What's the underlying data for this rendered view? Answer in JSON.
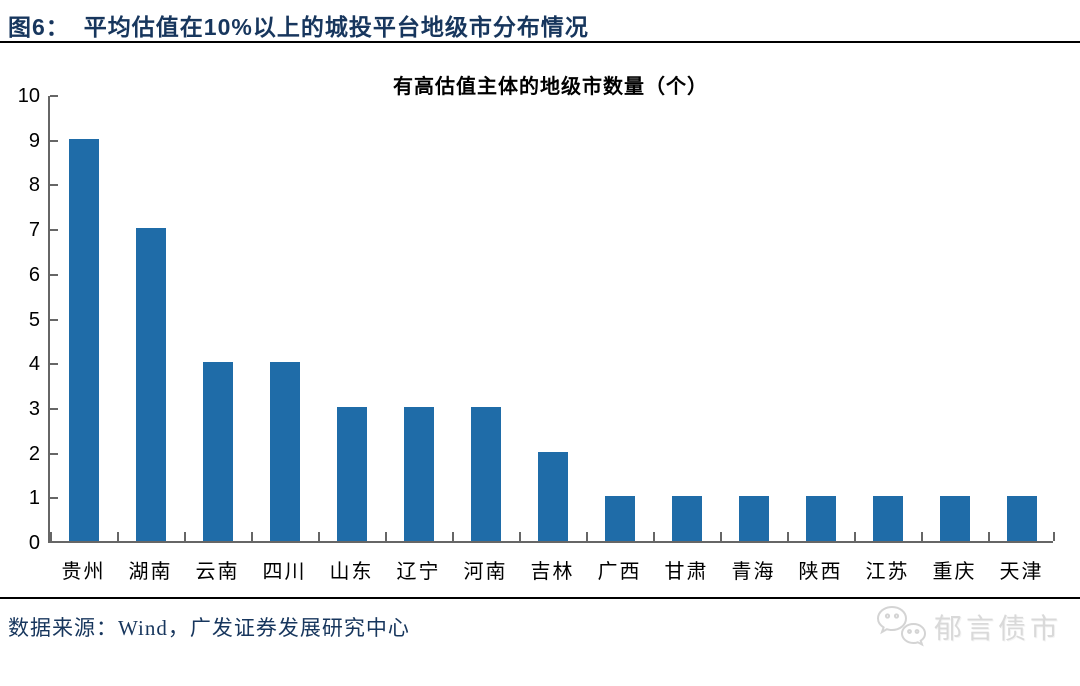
{
  "header": {
    "title_prefix": "图6：",
    "title_text": "平均估值在10%以上的城投平台地级市分布情况"
  },
  "chart_data": {
    "type": "bar",
    "title": "有高估值主体的地级市数量（个）",
    "categories": [
      "贵州",
      "湖南",
      "云南",
      "四川",
      "山东",
      "辽宁",
      "河南",
      "吉林",
      "广西",
      "甘肃",
      "青海",
      "陕西",
      "江苏",
      "重庆",
      "天津"
    ],
    "values": [
      9,
      7,
      4,
      4,
      3,
      3,
      3,
      2,
      1,
      1,
      1,
      1,
      1,
      1,
      1
    ],
    "xlabel": "",
    "ylabel": "",
    "ylim": [
      0,
      10
    ],
    "ytick_step": 1,
    "grid": false,
    "legend_position": "none",
    "bar_color": "#1F6CA8"
  },
  "footer": {
    "source": "数据来源：Wind，广发证券发展研究中心",
    "watermark": "郁言债市",
    "watermark_icon": "wechat-icon"
  },
  "colors": {
    "title_navy": "#17365D",
    "bar_blue": "#1F6CA8",
    "axis_gray": "#666666",
    "watermark_gray": "#D9D9D9"
  }
}
